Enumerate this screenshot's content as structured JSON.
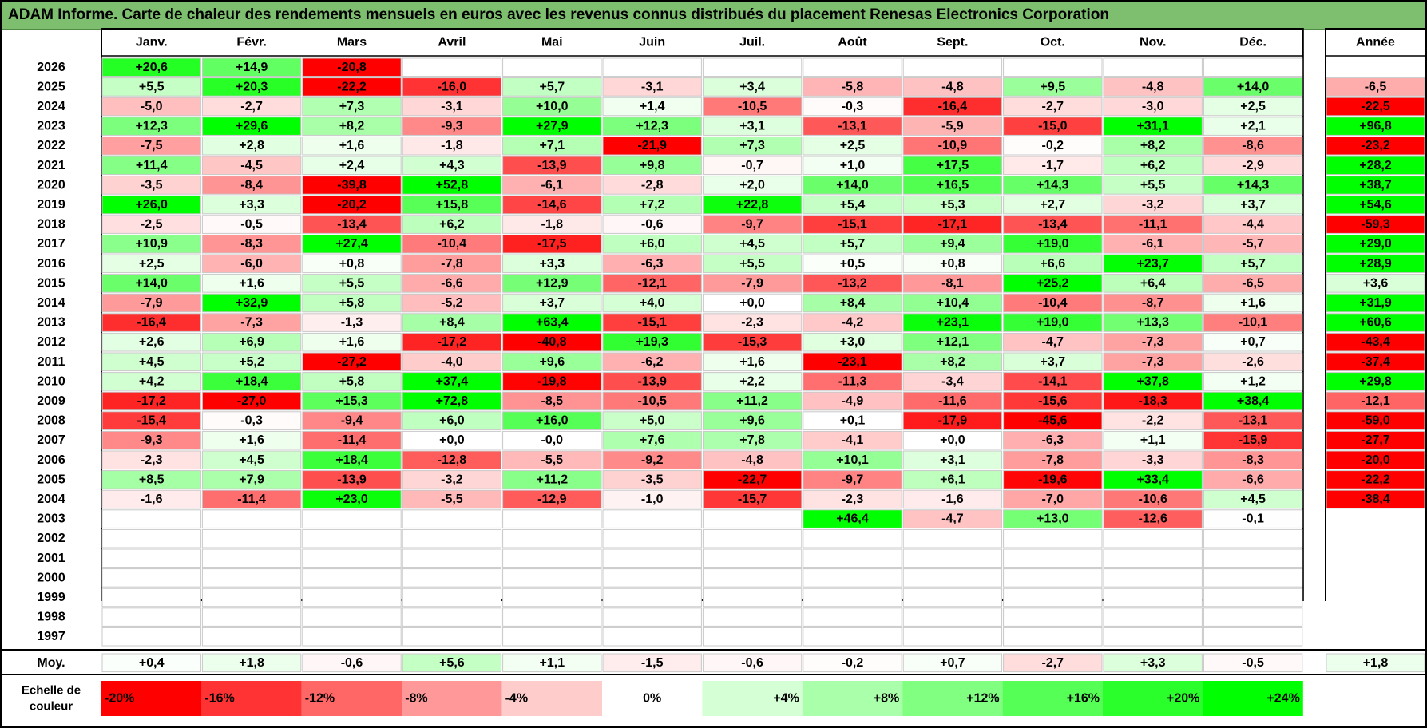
{
  "title": "ADAM Informe. Carte de chaleur des rendements mensuels en euros avec les revenus connus distribués du placement Renesas Electronics Corporation",
  "chart_data": {
    "type": "heatmap",
    "months": [
      "Janv.",
      "Févr.",
      "Mars",
      "Avril",
      "Mai",
      "Juin",
      "Juil.",
      "Août",
      "Sept.",
      "Oct.",
      "Nov.",
      "Déc."
    ],
    "year_header": "Année",
    "rows": [
      {
        "year": "2026",
        "months": [
          "+20,6",
          "+14,9",
          "-20,8",
          "",
          "",
          "",
          "",
          "",
          "",
          "",
          "",
          ""
        ],
        "annual": ""
      },
      {
        "year": "2025",
        "months": [
          "+5,5",
          "+20,3",
          "-22,2",
          "-16,0",
          "+5,7",
          "-3,1",
          "+3,4",
          "-5,8",
          "-4,8",
          "+9,5",
          "-4,8",
          "+14,0"
        ],
        "annual": "-6,5"
      },
      {
        "year": "2024",
        "months": [
          "-5,0",
          "-2,7",
          "+7,3",
          "-3,1",
          "+10,0",
          "+1,4",
          "-10,5",
          "-0,3",
          "-16,4",
          "-2,7",
          "-3,0",
          "+2,5"
        ],
        "annual": "-22,5"
      },
      {
        "year": "2023",
        "months": [
          "+12,3",
          "+29,6",
          "+8,2",
          "-9,3",
          "+27,9",
          "+12,3",
          "+3,1",
          "-13,1",
          "-5,9",
          "-15,0",
          "+31,1",
          "+2,1"
        ],
        "annual": "+96,8"
      },
      {
        "year": "2022",
        "months": [
          "-7,5",
          "+2,8",
          "+1,6",
          "-1,8",
          "+7,1",
          "-21,9",
          "+7,3",
          "+2,5",
          "-10,9",
          "-0,2",
          "+8,2",
          "-8,6"
        ],
        "annual": "-23,2"
      },
      {
        "year": "2021",
        "months": [
          "+11,4",
          "-4,5",
          "+2,4",
          "+4,3",
          "-13,9",
          "+9,8",
          "-0,7",
          "+1,0",
          "+17,5",
          "-1,7",
          "+6,2",
          "-2,9"
        ],
        "annual": "+28,2"
      },
      {
        "year": "2020",
        "months": [
          "-3,5",
          "-8,4",
          "-39,8",
          "+52,8",
          "-6,1",
          "-2,8",
          "+2,0",
          "+14,0",
          "+16,5",
          "+14,3",
          "+5,5",
          "+14,3"
        ],
        "annual": "+38,7"
      },
      {
        "year": "2019",
        "months": [
          "+26,0",
          "+3,3",
          "-20,2",
          "+15,8",
          "-14,6",
          "+7,2",
          "+22,8",
          "+5,4",
          "+5,3",
          "+2,7",
          "-3,2",
          "+3,7"
        ],
        "annual": "+54,6"
      },
      {
        "year": "2018",
        "months": [
          "-2,5",
          "-0,5",
          "-13,4",
          "+6,2",
          "-1,8",
          "-0,6",
          "-9,7",
          "-15,1",
          "-17,1",
          "-13,4",
          "-11,1",
          "-4,4"
        ],
        "annual": "-59,3"
      },
      {
        "year": "2017",
        "months": [
          "+10,9",
          "-8,3",
          "+27,4",
          "-10,4",
          "-17,5",
          "+6,0",
          "+4,5",
          "+5,7",
          "+9,4",
          "+19,0",
          "-6,1",
          "-5,7"
        ],
        "annual": "+29,0"
      },
      {
        "year": "2016",
        "months": [
          "+2,5",
          "-6,0",
          "+0,8",
          "-7,8",
          "+3,3",
          "-6,3",
          "+5,5",
          "+0,5",
          "+0,8",
          "+6,6",
          "+23,7",
          "+5,7"
        ],
        "annual": "+28,9"
      },
      {
        "year": "2015",
        "months": [
          "+14,0",
          "+1,6",
          "+5,5",
          "-6,6",
          "+12,9",
          "-12,1",
          "-7,9",
          "-13,2",
          "-8,1",
          "+25,2",
          "+6,4",
          "-6,5"
        ],
        "annual": "+3,6"
      },
      {
        "year": "2014",
        "months": [
          "-7,9",
          "+32,9",
          "+5,8",
          "-5,2",
          "+3,7",
          "+4,0",
          "+0,0",
          "+8,4",
          "+10,4",
          "-10,4",
          "-8,7",
          "+1,6"
        ],
        "annual": "+31,9"
      },
      {
        "year": "2013",
        "months": [
          "-16,4",
          "-7,3",
          "-1,3",
          "+8,4",
          "+63,4",
          "-15,1",
          "-2,3",
          "-4,2",
          "+23,1",
          "+19,0",
          "+13,3",
          "-10,1"
        ],
        "annual": "+60,6"
      },
      {
        "year": "2012",
        "months": [
          "+2,6",
          "+6,9",
          "+1,6",
          "-17,2",
          "-40,8",
          "+19,3",
          "-15,3",
          "+3,0",
          "+12,1",
          "-4,7",
          "-7,3",
          "+0,7"
        ],
        "annual": "-43,4"
      },
      {
        "year": "2011",
        "months": [
          "+4,5",
          "+5,2",
          "-27,2",
          "-4,0",
          "+9,6",
          "-6,2",
          "+1,6",
          "-23,1",
          "+8,2",
          "+3,7",
          "-7,3",
          "-2,6"
        ],
        "annual": "-37,4"
      },
      {
        "year": "2010",
        "months": [
          "+4,2",
          "+18,4",
          "+5,8",
          "+37,4",
          "-19,8",
          "-13,9",
          "+2,2",
          "-11,3",
          "-3,4",
          "-14,1",
          "+37,8",
          "+1,2"
        ],
        "annual": "+29,8"
      },
      {
        "year": "2009",
        "months": [
          "-17,2",
          "-27,0",
          "+15,3",
          "+72,8",
          "-8,5",
          "-10,5",
          "+11,2",
          "-4,9",
          "-11,6",
          "-15,6",
          "-18,3",
          "+38,4"
        ],
        "annual": "-12,1"
      },
      {
        "year": "2008",
        "months": [
          "-15,4",
          "-0,3",
          "-9,4",
          "+6,0",
          "+16,0",
          "+5,0",
          "+9,6",
          "+0,1",
          "-17,9",
          "-45,6",
          "-2,2",
          "-13,1"
        ],
        "annual": "-59,0"
      },
      {
        "year": "2007",
        "months": [
          "-9,3",
          "+1,6",
          "-11,4",
          "+0,0",
          "-0,0",
          "+7,6",
          "+7,8",
          "-4,1",
          "+0,0",
          "-6,3",
          "+1,1",
          "-15,9"
        ],
        "annual": "-27,7"
      },
      {
        "year": "2006",
        "months": [
          "-2,3",
          "+4,5",
          "+18,4",
          "-12,8",
          "-5,5",
          "-9,2",
          "-4,8",
          "+10,1",
          "+3,1",
          "-7,8",
          "-3,3",
          "-8,3"
        ],
        "annual": "-20,0"
      },
      {
        "year": "2005",
        "months": [
          "+8,5",
          "+7,9",
          "-13,9",
          "-3,2",
          "+11,2",
          "-3,5",
          "-22,7",
          "-9,7",
          "+6,1",
          "-19,6",
          "+33,4",
          "-6,6"
        ],
        "annual": "-22,2"
      },
      {
        "year": "2004",
        "months": [
          "-1,6",
          "-11,4",
          "+23,0",
          "-5,5",
          "-12,9",
          "-1,0",
          "-15,7",
          "-2,3",
          "-1,6",
          "-7,0",
          "-10,6",
          "+4,5"
        ],
        "annual": "-38,4"
      },
      {
        "year": "2003",
        "months": [
          "",
          "",
          "",
          "",
          "",
          "",
          "",
          "+46,4",
          "-4,7",
          "+13,0",
          "-12,6",
          "-0,1"
        ],
        "annual": ""
      },
      {
        "year": "2002",
        "months": [
          "",
          "",
          "",
          "",
          "",
          "",
          "",
          "",
          "",
          "",
          "",
          ""
        ],
        "annual": ""
      },
      {
        "year": "2001",
        "months": [
          "",
          "",
          "",
          "",
          "",
          "",
          "",
          "",
          "",
          "",
          "",
          ""
        ],
        "annual": ""
      },
      {
        "year": "2000",
        "months": [
          "",
          "",
          "",
          "",
          "",
          "",
          "",
          "",
          "",
          "",
          "",
          ""
        ],
        "annual": ""
      },
      {
        "year": "1999",
        "months": [
          "",
          "",
          "",
          "",
          "",
          "",
          "",
          "",
          "",
          "",
          "",
          ""
        ],
        "annual": ""
      },
      {
        "year": "1998",
        "months": [
          "",
          "",
          "",
          "",
          "",
          "",
          "",
          "",
          "",
          "",
          "",
          ""
        ],
        "annual": ""
      },
      {
        "year": "1997",
        "months": [
          "",
          "",
          "",
          "",
          "",
          "",
          "",
          "",
          "",
          "",
          "",
          ""
        ],
        "annual": ""
      }
    ],
    "average": {
      "label": "Moy.",
      "months": [
        "+0,4",
        "+1,8",
        "-0,6",
        "+5,6",
        "+1,1",
        "-1,5",
        "-0,6",
        "-0,2",
        "+0,7",
        "-2,7",
        "+3,3",
        "-0,5"
      ],
      "annual": "+1,8"
    },
    "scale": {
      "label_line1": "Echelle de",
      "label_line2": "couleur",
      "stops": [
        "-20%",
        "-16%",
        "-12%",
        "-8%",
        "-4%",
        "0%",
        "+4%",
        "+8%",
        "+12%",
        "+16%",
        "+20%",
        "+24%"
      ],
      "stop_values": [
        -20,
        -16,
        -12,
        -8,
        -4,
        0,
        4,
        8,
        12,
        16,
        20,
        24
      ]
    },
    "colors": {
      "strong_red": "#ff0000",
      "strong_green": "#00ff00",
      "neutral": "#ffffff",
      "title_bar": "#7dbf6e"
    }
  }
}
